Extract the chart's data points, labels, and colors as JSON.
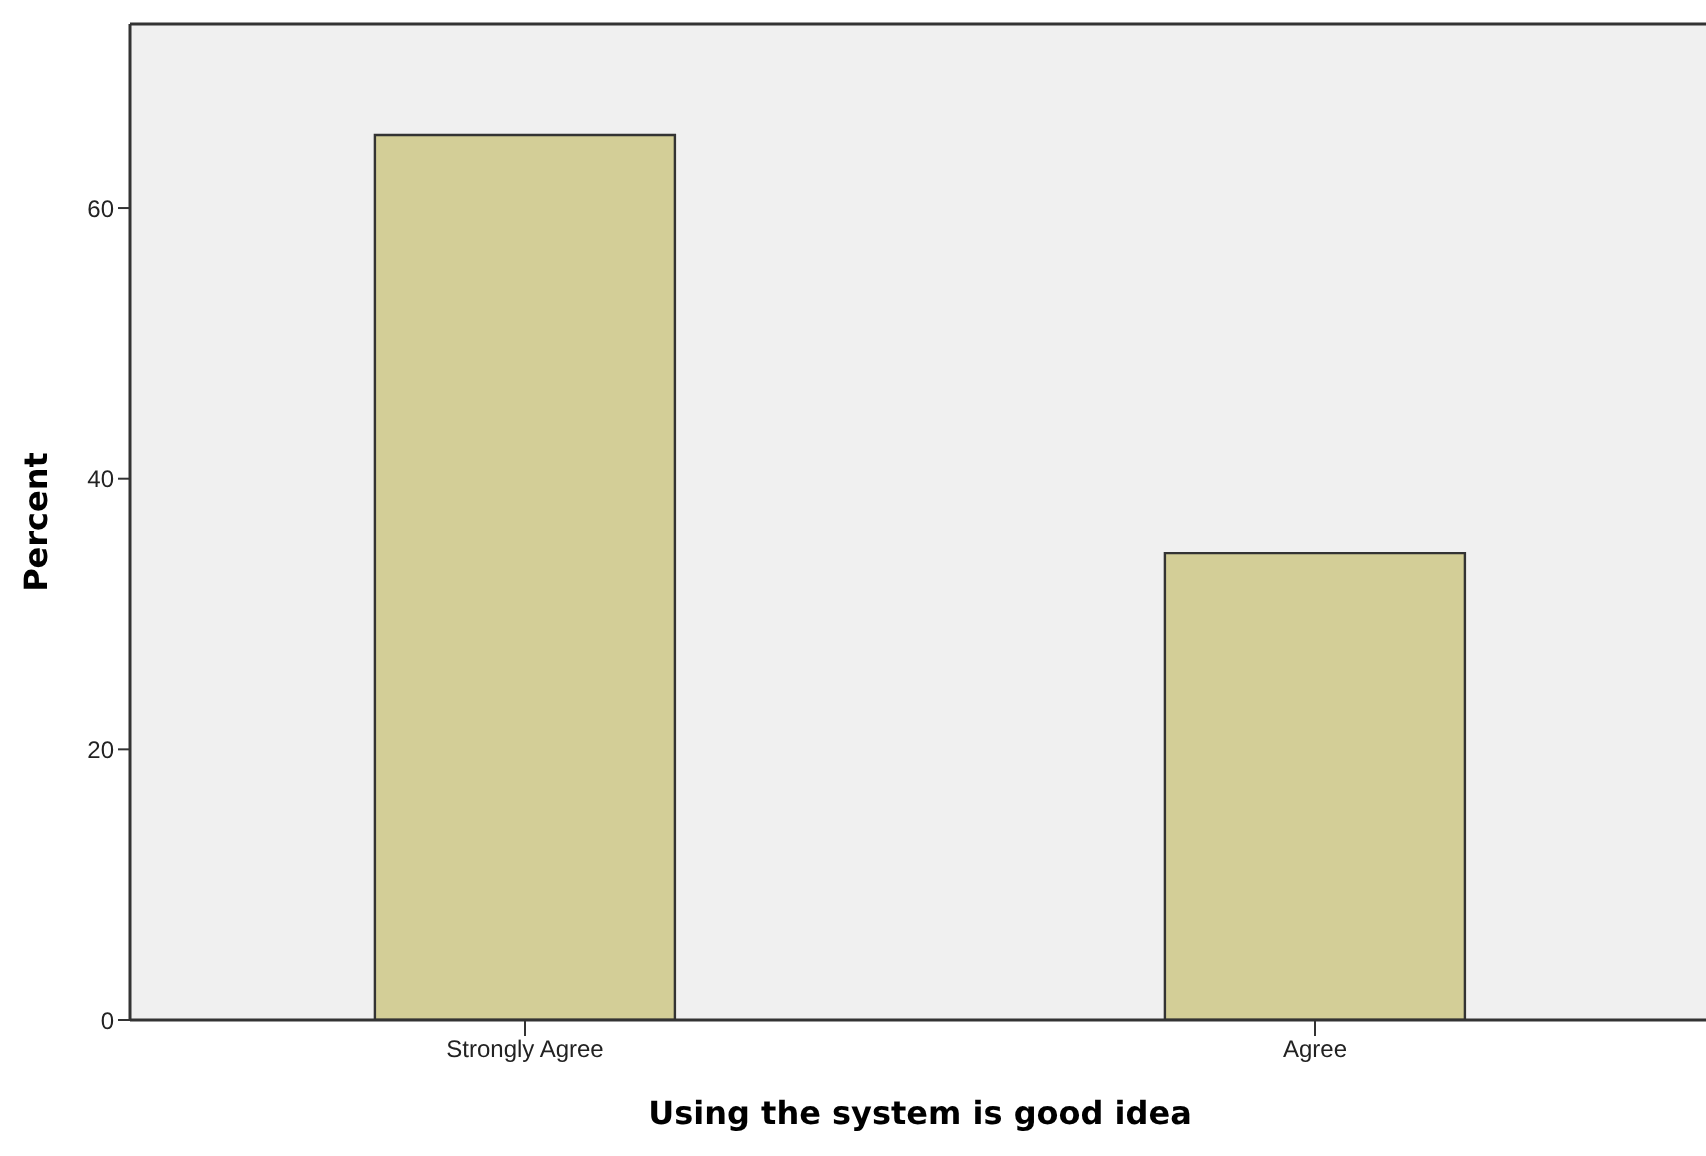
{
  "chart_data": {
    "type": "bar",
    "xlabel": "Using the system is good idea",
    "ylabel": "Percent",
    "categories": [
      "Strongly Agree",
      "Agree"
    ],
    "values": [
      65.4,
      34.5
    ],
    "color": "#d3ce97",
    "ylim": [
      0,
      73.6
    ],
    "yticks": [
      0,
      20,
      40,
      60
    ]
  }
}
